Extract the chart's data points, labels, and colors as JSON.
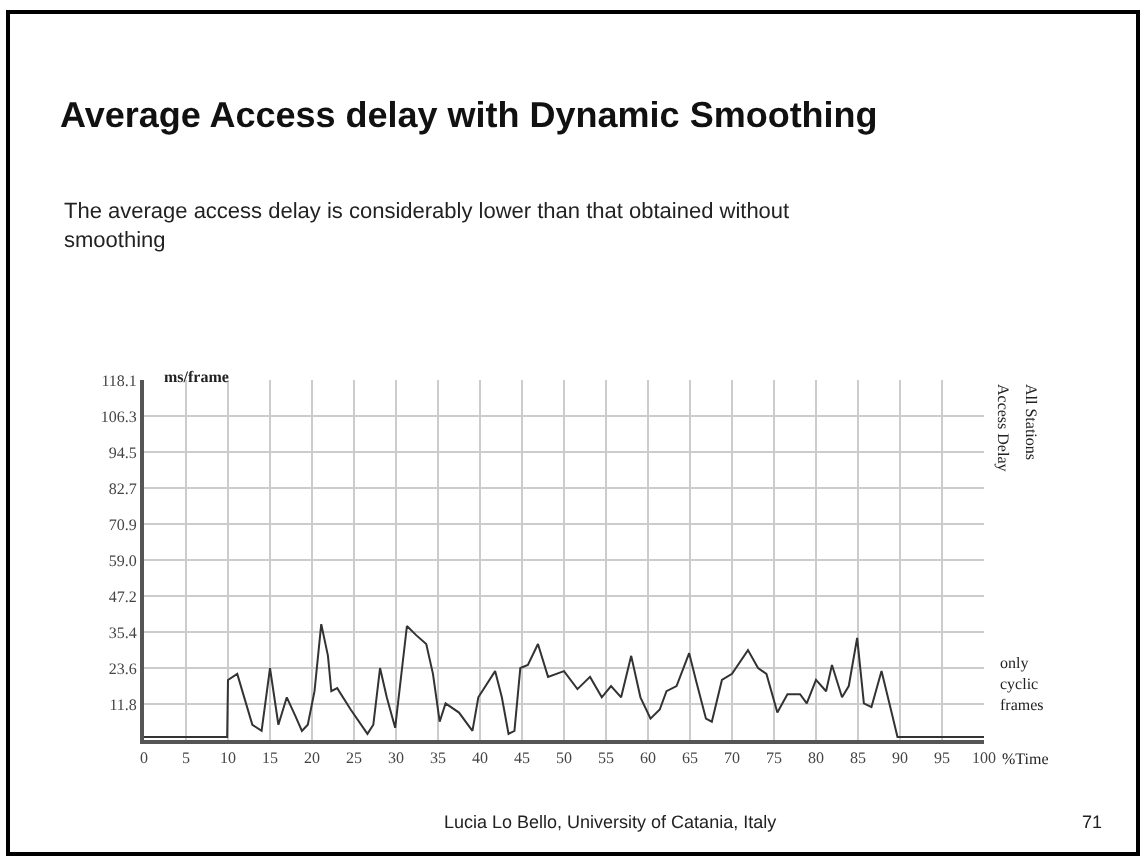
{
  "chart_data": {
    "type": "line",
    "title": "Average Access delay with Dynamic Smoothing",
    "subtitle": "The average access delay is considerably lower than that obtained without smoothing",
    "xlabel": "%Time",
    "ylabel": "ms/frame",
    "x": [
      0,
      2,
      4,
      6,
      8,
      9.9,
      10,
      11.1,
      12.9,
      14,
      15,
      16,
      17,
      18,
      18.8,
      19.5,
      20.3,
      21.1,
      21.9,
      22.3,
      23,
      24.6,
      26.6,
      27.3,
      28.1,
      28.9,
      29.9,
      31.3,
      32.4,
      33.6,
      34.4,
      35.2,
      35.9,
      37.5,
      39.1,
      39.8,
      41.8,
      42.6,
      43.4,
      44.1,
      44.8,
      45.7,
      46.9,
      48.1,
      50,
      51.6,
      53.1,
      54.5,
      55.6,
      56.8,
      58,
      59.1,
      60.3,
      61.4,
      62.2,
      63.4,
      64.9,
      65.7,
      66.9,
      67.6,
      68.8,
      70,
      71.9,
      73.1,
      74.1,
      75.4,
      76.6,
      78.1,
      78.9,
      80,
      81.2,
      81.9,
      83.1,
      83.9,
      84.9,
      85.7,
      86.6,
      87.8,
      89,
      89.7,
      92,
      94,
      96,
      98,
      100
    ],
    "series": [
      {
        "color": "#333333",
        "values": [
          1,
          1,
          1,
          1,
          1,
          1,
          19.7,
          21.7,
          5,
          3,
          23.6,
          5,
          14,
          8,
          3,
          5,
          16,
          38,
          27.6,
          16,
          17,
          10,
          2,
          5,
          23.6,
          14,
          4,
          37.4,
          34.4,
          31.5,
          21.7,
          6,
          12,
          9,
          3,
          14,
          22.6,
          14,
          2,
          3,
          23.6,
          24.6,
          31.5,
          20.7,
          22.6,
          16.7,
          20.7,
          14,
          17.7,
          14,
          27.6,
          14,
          7,
          10,
          16,
          17.7,
          28.5,
          19.7,
          7,
          6,
          19.7,
          21.7,
          29.5,
          23.6,
          21.7,
          9,
          15,
          15,
          12,
          19.7,
          16,
          24.6,
          14,
          17.7,
          33.5,
          12,
          10.8,
          22.6,
          9,
          1,
          1,
          1,
          1,
          1,
          1
        ]
      }
    ],
    "xlim": [
      0,
      100
    ],
    "ylim": [
      0,
      118.1
    ],
    "xticks": [
      0,
      5,
      10,
      15,
      20,
      25,
      30,
      35,
      40,
      45,
      50,
      55,
      60,
      65,
      70,
      75,
      80,
      85,
      90,
      95,
      100
    ],
    "yticks": [
      11.8,
      23.6,
      35.4,
      47.2,
      {
        "value": 59.0,
        "label": "59.0"
      },
      70.9,
      82.7,
      94.5,
      106.3,
      118.1
    ],
    "grid": true,
    "marker": "none",
    "line_style": "solid",
    "annotations": [
      "Access Delay",
      "All Stations",
      "only cyclic frames",
      "Lucia Lo Bello, University of Catania, Italy",
      "71"
    ]
  }
}
